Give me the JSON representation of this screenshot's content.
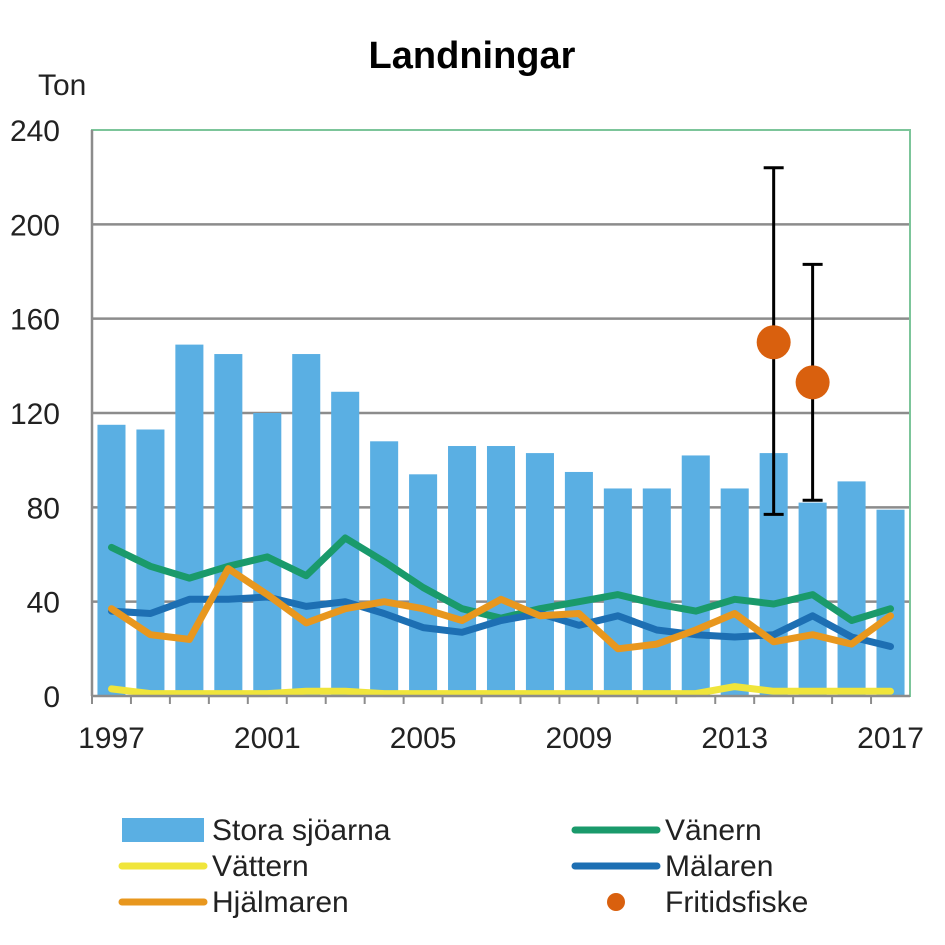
{
  "chart_data": {
    "type": "bar",
    "title": "Landningar",
    "ylabel": "Ton",
    "xlabel": "",
    "ylim": [
      0,
      240
    ],
    "yticks": [
      "0",
      "40",
      "80",
      "120",
      "160",
      "200",
      "240"
    ],
    "xticks": [
      "1997",
      "2001",
      "2005",
      "2009",
      "2013",
      "2017"
    ],
    "x": [
      1997,
      1998,
      1999,
      2000,
      2001,
      2002,
      2003,
      2004,
      2005,
      2006,
      2007,
      2008,
      2009,
      2010,
      2011,
      2012,
      2013,
      2014,
      2015,
      2016,
      2017
    ],
    "grid": "horizontal",
    "legend_position": "bottom",
    "bar_series": {
      "name": "Stora sjöarna",
      "color": "#5aafe3",
      "values": [
        115,
        113,
        149,
        145,
        120,
        145,
        129,
        108,
        94,
        106,
        106,
        103,
        95,
        88,
        88,
        102,
        88,
        103,
        82,
        91,
        79
      ]
    },
    "line_series": [
      {
        "name": "Vänern",
        "color": "#1a9a6b",
        "values": [
          63,
          55,
          50,
          55,
          59,
          51,
          67,
          57,
          46,
          37,
          33,
          37,
          40,
          43,
          39,
          36,
          41,
          39,
          43,
          32,
          37
        ]
      },
      {
        "name": "Vättern",
        "color": "#f0e53b",
        "values": [
          3,
          1,
          1,
          1,
          1,
          2,
          2,
          1,
          1,
          1,
          1,
          1,
          1,
          1,
          1,
          1,
          4,
          2,
          2,
          2,
          2
        ]
      },
      {
        "name": "Mälaren",
        "color": "#1d6fb3",
        "values": [
          36,
          35,
          41,
          41,
          42,
          38,
          40,
          35,
          29,
          27,
          32,
          35,
          30,
          34,
          28,
          26,
          25,
          26,
          34,
          25,
          21
        ]
      },
      {
        "name": "Hjälmaren",
        "color": "#e8971e",
        "values": [
          37,
          26,
          24,
          54,
          43,
          31,
          37,
          40,
          37,
          32,
          41,
          34,
          35,
          20,
          22,
          28,
          35,
          23,
          26,
          22,
          34
        ]
      }
    ],
    "point_series": {
      "name": "Fritidsfiske",
      "color": "#d9600e",
      "points": [
        {
          "x": 2014,
          "y": 150,
          "err_low": 77,
          "err_high": 224
        },
        {
          "x": 2015,
          "y": 133,
          "err_low": 83,
          "err_high": 183
        }
      ]
    }
  }
}
